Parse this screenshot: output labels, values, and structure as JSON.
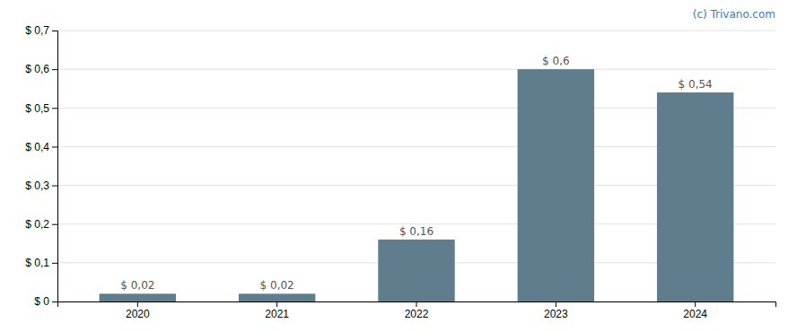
{
  "chart_data": {
    "type": "bar",
    "categories": [
      "2020",
      "2021",
      "2022",
      "2023",
      "2024"
    ],
    "values": [
      0.02,
      0.02,
      0.16,
      0.6,
      0.54
    ],
    "value_labels": [
      "$ 0,02",
      "$ 0,02",
      "$ 0,16",
      "$ 0,6",
      "$ 0,54"
    ],
    "color": "#5f7d8c",
    "ylim": [
      0,
      0.7
    ],
    "yticks": [
      {
        "value": 0.0,
        "label": "$ 0"
      },
      {
        "value": 0.1,
        "label": "$ 0,1"
      },
      {
        "value": 0.2,
        "label": "$ 0,2"
      },
      {
        "value": 0.3,
        "label": "$ 0,3"
      },
      {
        "value": 0.4,
        "label": "$ 0,4"
      },
      {
        "value": 0.5,
        "label": "$ 0,5"
      },
      {
        "value": 0.6,
        "label": "$ 0,6"
      },
      {
        "value": 0.7,
        "label": "$ 0,7"
      }
    ],
    "grid": true,
    "data_labels": true,
    "annotations": [
      {
        "text": "(c) Trivano.com",
        "color": "#3a7abf"
      }
    ]
  }
}
